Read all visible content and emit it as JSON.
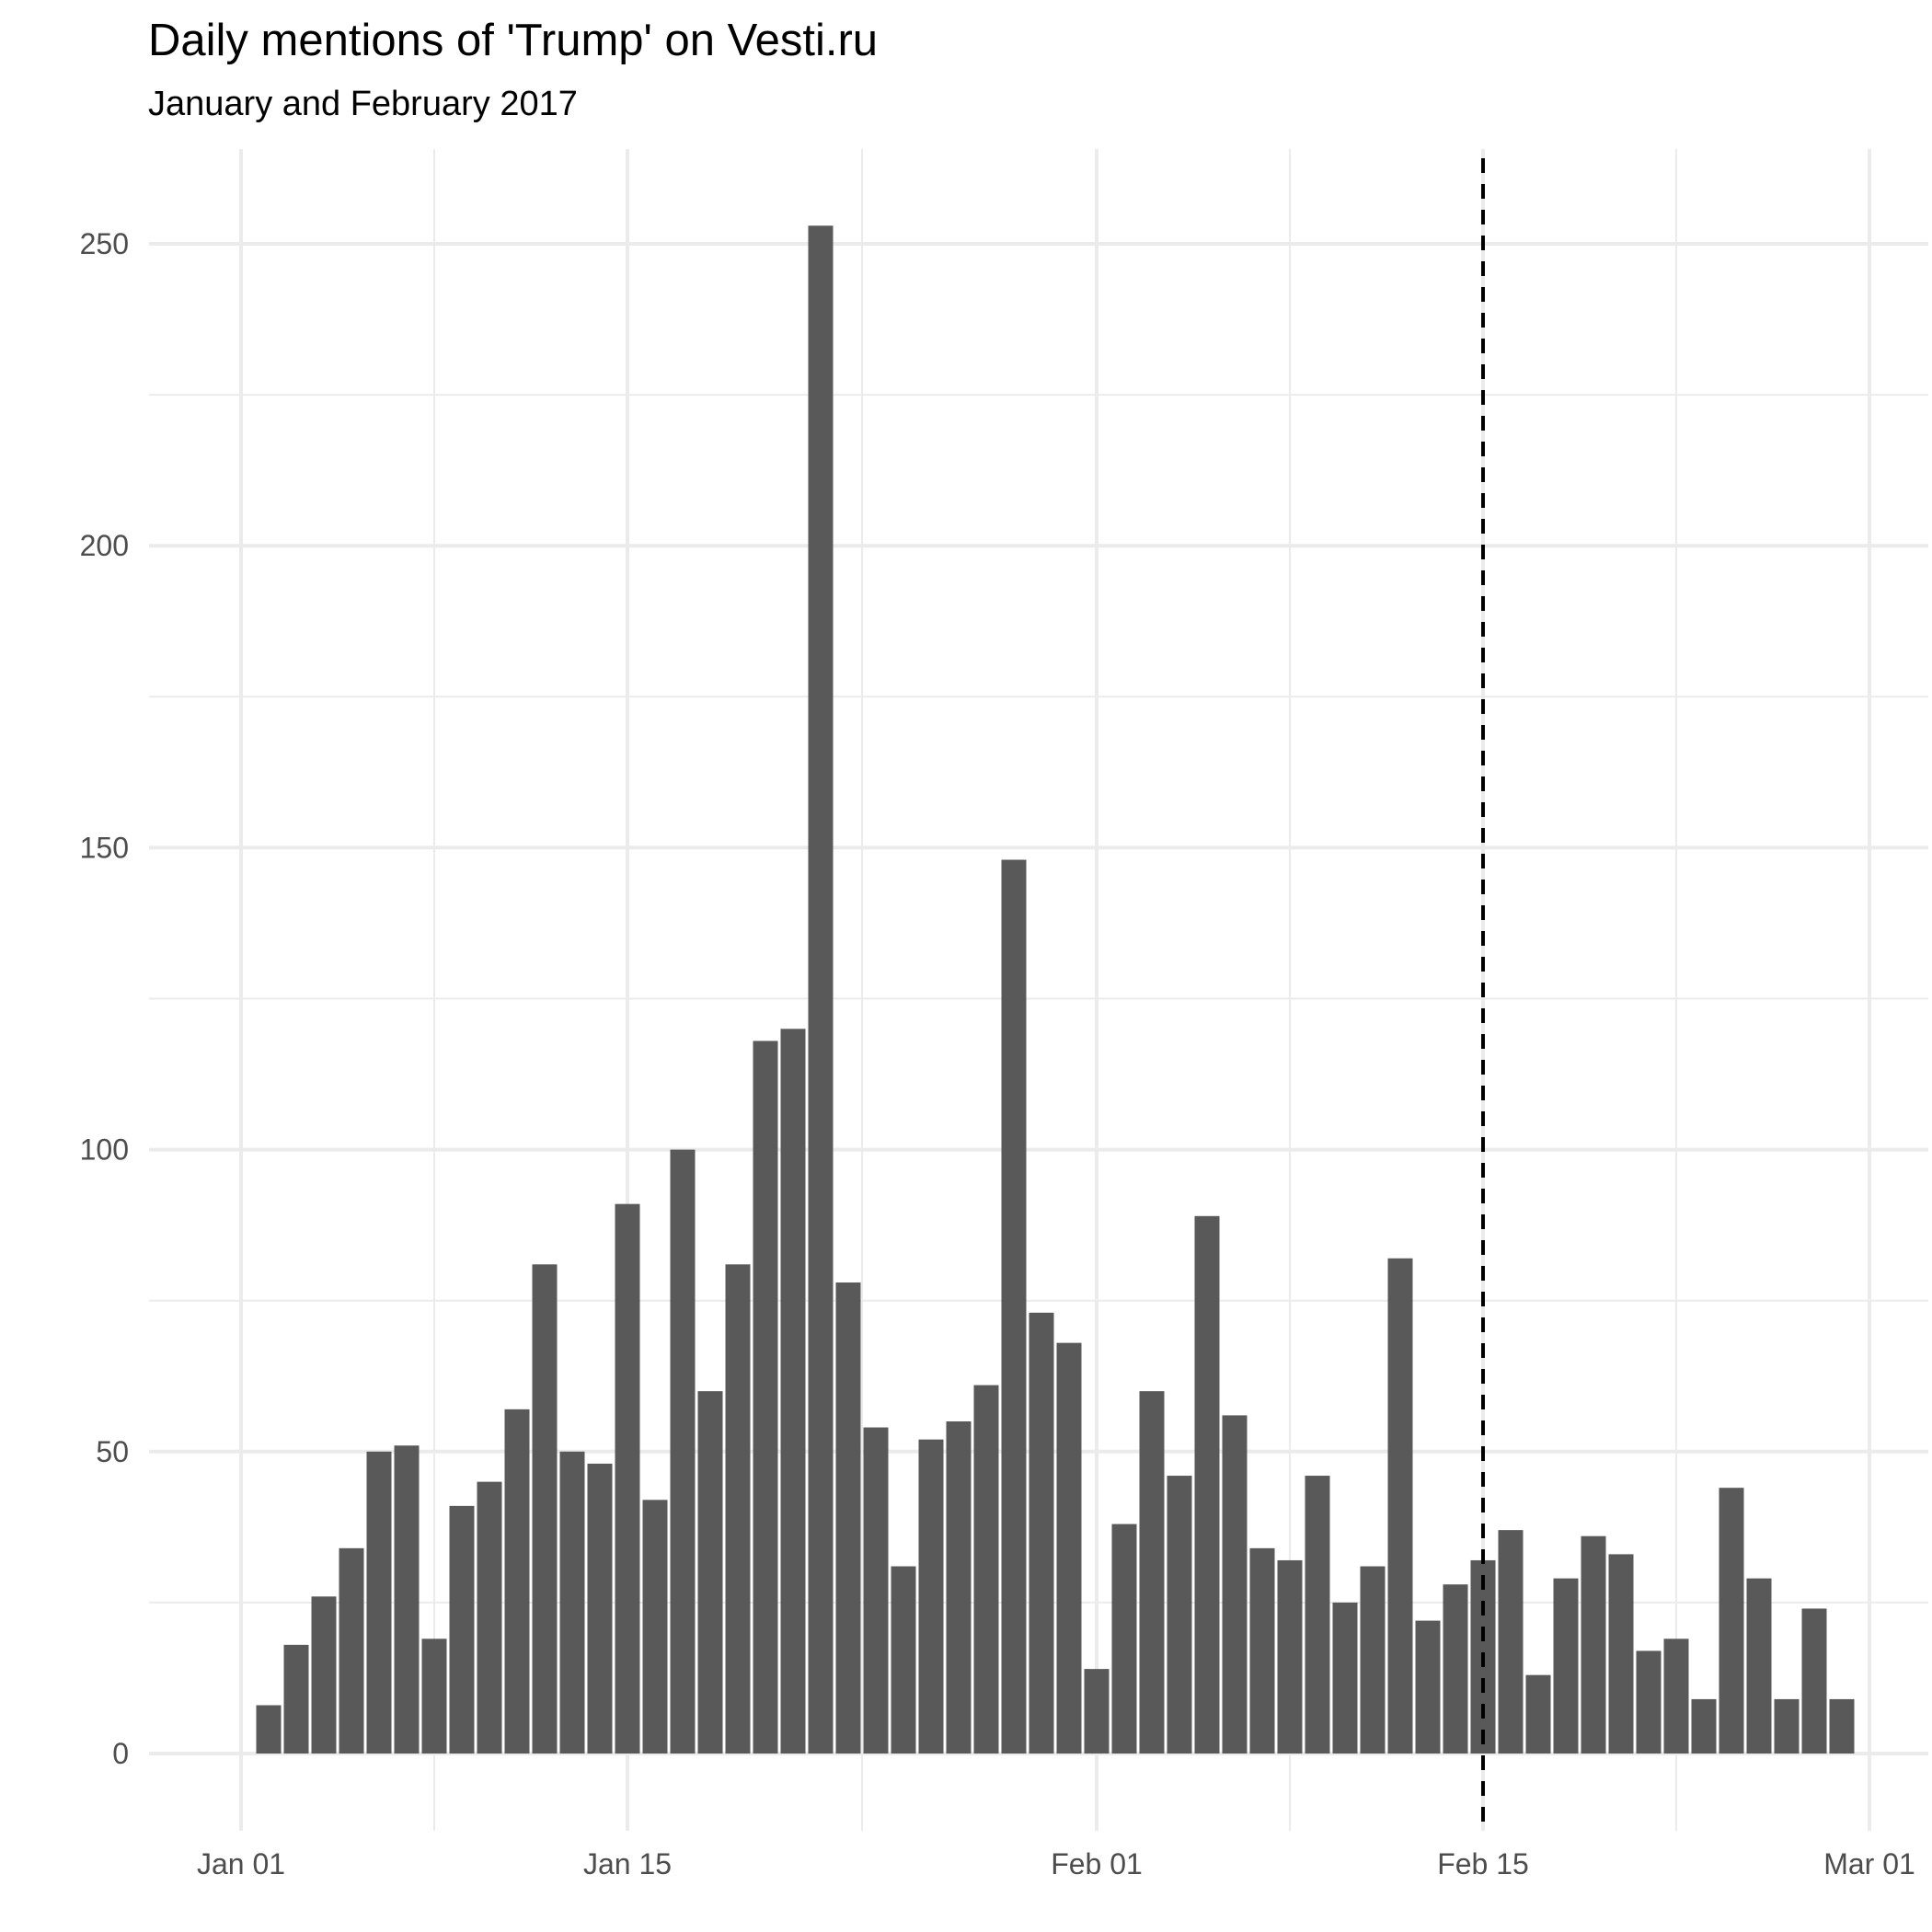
{
  "chart_data": {
    "type": "bar",
    "title": "Daily mentions of 'Trump' on Vesti.ru",
    "subtitle": "January and February 2017",
    "xlabel": "",
    "ylabel": "",
    "x_start": "2017-01-02",
    "x": [
      "2017-01-02",
      "2017-01-03",
      "2017-01-04",
      "2017-01-05",
      "2017-01-06",
      "2017-01-07",
      "2017-01-08",
      "2017-01-09",
      "2017-01-10",
      "2017-01-11",
      "2017-01-12",
      "2017-01-13",
      "2017-01-14",
      "2017-01-15",
      "2017-01-16",
      "2017-01-17",
      "2017-01-18",
      "2017-01-19",
      "2017-01-20",
      "2017-01-21",
      "2017-01-22",
      "2017-01-23",
      "2017-01-24",
      "2017-01-25",
      "2017-01-26",
      "2017-01-27",
      "2017-01-28",
      "2017-01-29",
      "2017-01-30",
      "2017-01-31",
      "2017-02-01",
      "2017-02-02",
      "2017-02-03",
      "2017-02-04",
      "2017-02-05",
      "2017-02-06",
      "2017-02-07",
      "2017-02-08",
      "2017-02-09",
      "2017-02-10",
      "2017-02-11",
      "2017-02-12",
      "2017-02-13",
      "2017-02-14",
      "2017-02-15",
      "2017-02-16",
      "2017-02-17",
      "2017-02-18",
      "2017-02-19",
      "2017-02-20",
      "2017-02-21",
      "2017-02-22",
      "2017-02-23",
      "2017-02-24",
      "2017-02-25",
      "2017-02-26",
      "2017-02-27",
      "2017-02-28"
    ],
    "values": [
      8,
      18,
      26,
      34,
      50,
      51,
      19,
      41,
      45,
      57,
      81,
      50,
      48,
      91,
      42,
      100,
      60,
      81,
      118,
      120,
      253,
      78,
      54,
      31,
      52,
      55,
      61,
      148,
      73,
      68,
      14,
      38,
      60,
      46,
      89,
      56,
      34,
      32,
      46,
      25,
      31,
      82,
      22,
      28,
      32,
      37,
      13,
      29,
      36,
      33,
      17,
      19,
      9,
      44,
      29,
      9,
      24,
      9
    ],
    "xlim": [
      "2017-01-01",
      "2017-03-01"
    ],
    "ylim": [
      0,
      250
    ],
    "y_ticks": [
      0,
      50,
      100,
      150,
      200,
      250
    ],
    "y_tick_labels": [
      "0",
      "50",
      "100",
      "150",
      "200",
      "250"
    ],
    "x_ticks": [
      "2017-01-01",
      "2017-01-15",
      "2017-02-01",
      "2017-02-15",
      "2017-03-01"
    ],
    "x_tick_labels": [
      "Jan 01",
      "Jan 15",
      "Feb 01",
      "Feb 15",
      "Mar 01"
    ],
    "vline": "2017-02-15",
    "bar_color": "#595959",
    "grid": true,
    "legend": "none"
  }
}
